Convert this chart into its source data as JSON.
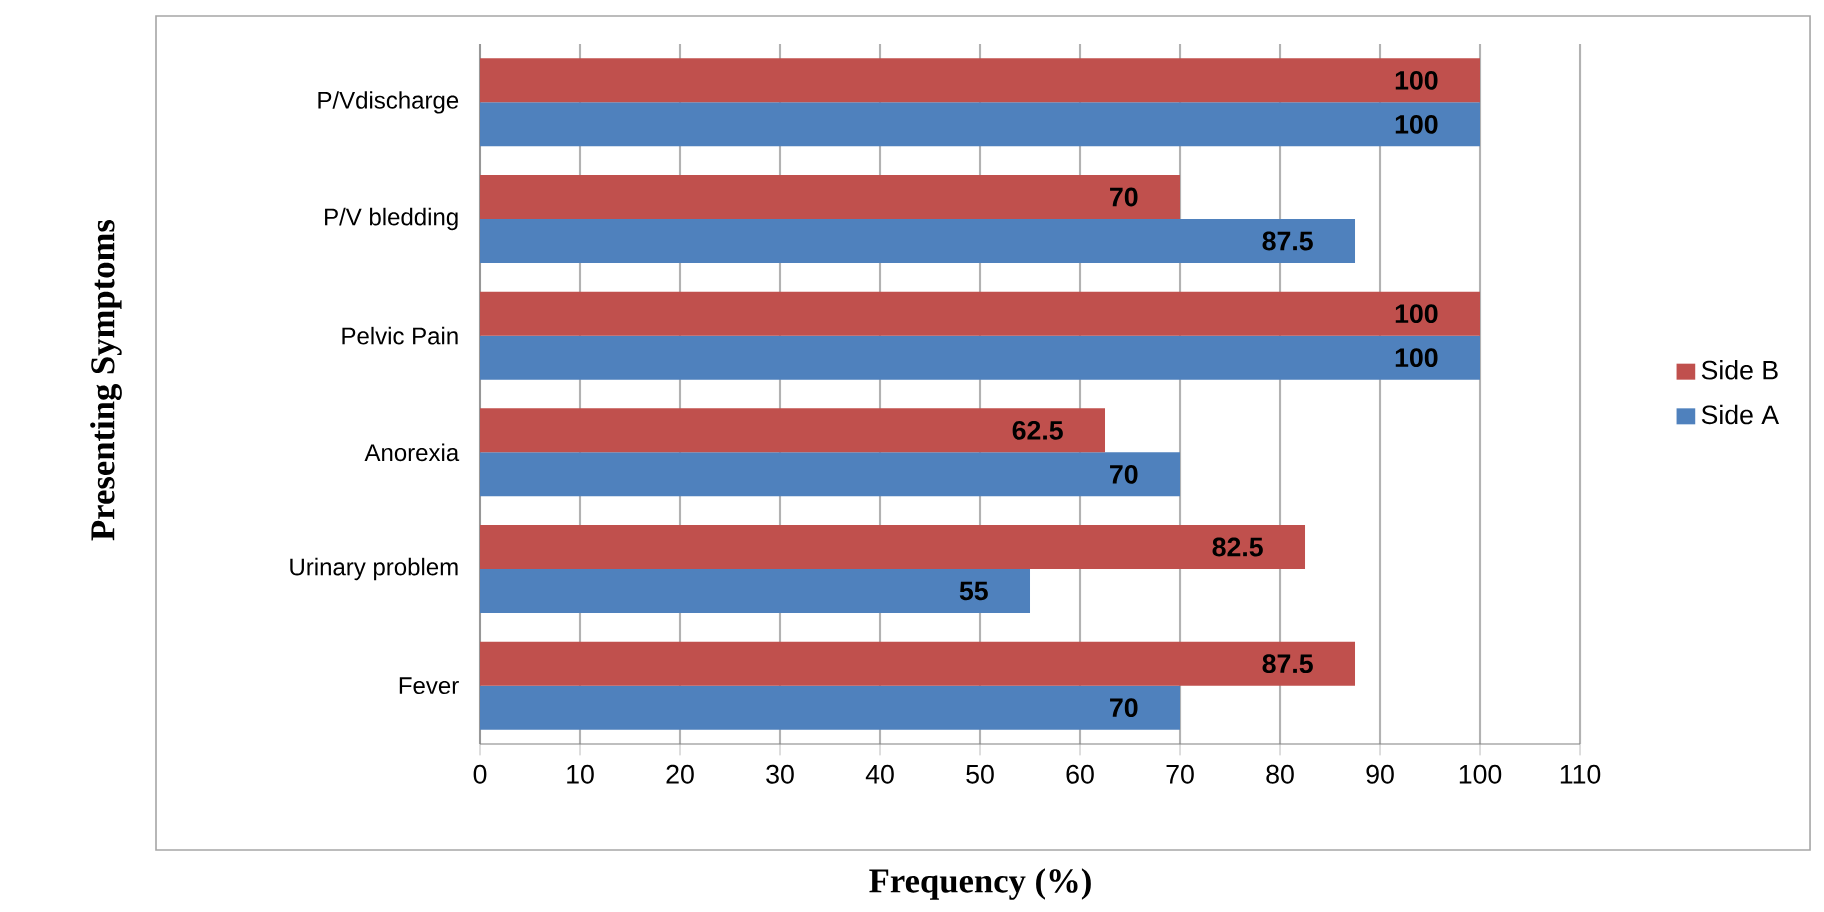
{
  "chart_data": {
    "type": "bar",
    "orientation": "horizontal",
    "xlabel": "Frequency (%)",
    "ylabel": "Presenting Symptoms",
    "categories": [
      "P/Vdischarge",
      "P/V bledding",
      "Pelvic Pain",
      "Anorexia",
      "Urinary problem",
      "Fever"
    ],
    "series": [
      {
        "name": "Side A",
        "color": "#4f81bd",
        "values": [
          100,
          87.5,
          100,
          70,
          55,
          70
        ]
      },
      {
        "name": "Side B",
        "color": "#c0504d",
        "values": [
          100,
          70,
          100,
          62.5,
          82.5,
          87.5
        ]
      }
    ],
    "xlim": [
      0,
      110
    ],
    "xticks": [
      0,
      10,
      20,
      30,
      40,
      50,
      60,
      70,
      80,
      90,
      100,
      110
    ],
    "grid": "x",
    "legend": "right",
    "data_labels": true
  }
}
